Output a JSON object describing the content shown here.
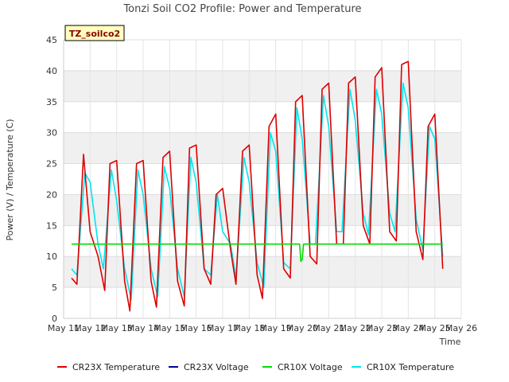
{
  "chart_data": {
    "type": "line",
    "title": "Tonzi Soil CO2 Profile: Power and Temperature",
    "xlabel": "Time",
    "ylabel": "Power (V) / Temperature (C)",
    "badge": "TZ_soilco2",
    "xlim": [
      11,
      26
    ],
    "ylim": [
      0,
      45
    ],
    "x_ticks": [
      {
        "v": 11,
        "label": "May 11"
      },
      {
        "v": 12,
        "label": "May 12"
      },
      {
        "v": 13,
        "label": "May 13"
      },
      {
        "v": 14,
        "label": "May 14"
      },
      {
        "v": 15,
        "label": "May 15"
      },
      {
        "v": 16,
        "label": "May 16"
      },
      {
        "v": 17,
        "label": "May 17"
      },
      {
        "v": 18,
        "label": "May 18"
      },
      {
        "v": 19,
        "label": "May 19"
      },
      {
        "v": 20,
        "label": "May 20"
      },
      {
        "v": 21,
        "label": "May 21"
      },
      {
        "v": 22,
        "label": "May 22"
      },
      {
        "v": 23,
        "label": "May 23"
      },
      {
        "v": 24,
        "label": "May 24"
      },
      {
        "v": 25,
        "label": "May 25"
      },
      {
        "v": 26,
        "label": "May 26"
      }
    ],
    "y_ticks": [
      0,
      5,
      10,
      15,
      20,
      25,
      30,
      35,
      40,
      45
    ],
    "grid": true,
    "legend": "bottom",
    "series": [
      {
        "name": "CR23X Temperature",
        "color": "#dd0000",
        "x": [
          11.3,
          11.5,
          11.75,
          12.0,
          12.3,
          12.55,
          12.75,
          13.0,
          13.3,
          13.5,
          13.75,
          14.0,
          14.3,
          14.5,
          14.75,
          15.0,
          15.3,
          15.55,
          15.75,
          16.0,
          16.3,
          16.55,
          16.75,
          17.0,
          17.3,
          17.5,
          17.75,
          18.0,
          18.3,
          18.5,
          18.75,
          19.0,
          19.3,
          19.55,
          19.75,
          20.0,
          20.3,
          20.55,
          20.75,
          21.0,
          21.3,
          21.55,
          21.75,
          22.0,
          22.3,
          22.55,
          22.75,
          23.0,
          23.3,
          23.55,
          23.75,
          24.0,
          24.3,
          24.55,
          24.75,
          25.0,
          25.3
        ],
        "y": [
          6.5,
          5.5,
          26.5,
          14.0,
          10.0,
          4.5,
          25.0,
          25.5,
          6.0,
          1.2,
          25.0,
          25.5,
          6.0,
          1.8,
          26.0,
          27.0,
          6.0,
          2.0,
          27.5,
          28.0,
          8.0,
          5.5,
          20.0,
          21.0,
          11.0,
          5.5,
          27.0,
          28.0,
          7.0,
          3.2,
          31.0,
          33.0,
          8.0,
          6.5,
          35.0,
          36.0,
          10.0,
          8.8,
          37.0,
          38.0,
          12.0,
          12.0,
          38.0,
          39.0,
          15.0,
          12.0,
          39.0,
          40.5,
          14.0,
          12.5,
          41.0,
          41.5,
          14.0,
          9.5,
          31.0,
          33.0,
          8.0
        ]
      },
      {
        "name": "CR23X Voltage",
        "color": "#000099",
        "x": [],
        "y": []
      },
      {
        "name": "CR10X Voltage",
        "color": "#00dd00",
        "x": [
          11.3,
          19.9,
          19.95,
          20.0,
          20.05,
          25.3
        ],
        "y": [
          12.0,
          12.0,
          9.2,
          9.5,
          12.0,
          12.0
        ]
      },
      {
        "name": "CR10X Temperature",
        "color": "#00e5ee",
        "x": [
          11.3,
          11.5,
          11.8,
          12.0,
          12.3,
          12.5,
          12.8,
          13.0,
          13.3,
          13.55,
          13.8,
          14.0,
          14.3,
          14.55,
          14.8,
          15.0,
          15.3,
          15.55,
          15.8,
          16.0,
          16.3,
          16.55,
          16.8,
          17.0,
          17.3,
          17.5,
          17.8,
          18.0,
          18.3,
          18.55,
          18.8,
          19.0,
          19.3,
          19.55,
          19.8,
          20.0,
          20.3,
          20.5,
          20.8,
          21.0,
          21.3,
          21.5,
          21.8,
          22.0,
          22.3,
          22.5,
          22.8,
          23.0,
          23.3,
          23.5,
          23.8,
          24.0,
          24.3,
          24.55,
          24.8,
          25.0,
          25.3
        ],
        "y": [
          8.0,
          7.0,
          23.5,
          22.0,
          12.0,
          8.0,
          24.0,
          19.0,
          8.0,
          3.0,
          24.0,
          20.0,
          8.0,
          3.5,
          24.5,
          21.0,
          8.0,
          3.5,
          26.0,
          22.0,
          8.0,
          7.0,
          20.0,
          14.0,
          12.0,
          6.5,
          26.0,
          22.0,
          9.0,
          5.0,
          30.0,
          27.0,
          9.0,
          8.0,
          34.0,
          29.0,
          12.0,
          12.0,
          36.0,
          31.0,
          14.0,
          14.0,
          37.0,
          32.0,
          17.0,
          13.5,
          37.0,
          33.0,
          17.0,
          14.0,
          38.0,
          34.0,
          16.0,
          11.0,
          31.0,
          29.0,
          10.0
        ]
      }
    ]
  }
}
